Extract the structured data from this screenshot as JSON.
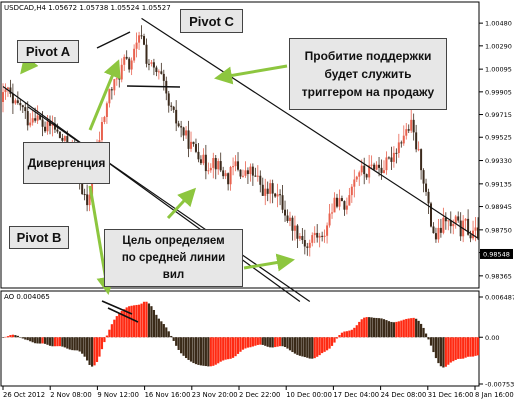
{
  "main_chart": {
    "header": "USDCAD,H4  1.05672 1.05738 1.05524 1.05527",
    "y_ticks": [
      "1.00480",
      "1.00290",
      "1.00095",
      "0.99905",
      "0.99715",
      "0.99525",
      "0.99330",
      "0.99135",
      "0.98945",
      "0.98750",
      "0.98560",
      "0.98365"
    ],
    "current_price": "0.98548"
  },
  "ao_panel": {
    "header": "AO 0.004065",
    "y_ticks": [
      "0.006487",
      "0.00",
      "-0.007533"
    ]
  },
  "x_ticks": [
    "26 Oct 2012",
    "2 Nov 08:00",
    "9 Nov 12:00",
    "16 Nov 16:00",
    "23 Nov 20:00",
    "2 Dec 22:00",
    "10 Dec 00:00",
    "17 Dec 04:00",
    "24 Dec 08:00",
    "31 Dec 16:00",
    "8 Jan 16:00"
  ],
  "annotations": {
    "pivot_a": "Pivot A",
    "pivot_b": "Pivot B",
    "pivot_c": "Pivot C",
    "divergence": "Дивергенция",
    "breakout_line1": "Пробитие поддержки",
    "breakout_line2": "будет служить",
    "breakout_line3": "триггером на продажу",
    "target_line1": "Цель определяем",
    "target_line2": "по средней линии",
    "target_line3": "вил"
  },
  "colors": {
    "bull_candle": "#e8624f",
    "bear_candle": "#3b2a1c",
    "ao_up": "#ff2a12",
    "ao_down": "#3a2a18",
    "arrow": "#8dc63f",
    "channel": "#111111"
  },
  "chart_data": {
    "type": "candlestick",
    "symbol": "USDCAD",
    "timeframe": "H4",
    "header_values": {
      "open": 1.05672,
      "high": 1.05738,
      "low": 1.05524,
      "close": 1.05527
    },
    "x_ticks": [
      "26 Oct 2012",
      "2 Nov 08:00",
      "9 Nov 12:00",
      "16 Nov 16:00",
      "23 Nov 20:00",
      "2 Dec 22:00",
      "10 Dec 00:00",
      "17 Dec 04:00",
      "24 Dec 08:00",
      "31 Dec 16:00",
      "8 Jan 16:00"
    ],
    "price_path": [
      [
        0,
        0.9982
      ],
      [
        3,
        0.9993
      ],
      [
        5,
        0.9978
      ],
      [
        8,
        0.998
      ],
      [
        11,
        0.9967
      ],
      [
        14,
        0.9972
      ],
      [
        18,
        0.9959
      ],
      [
        21,
        0.9963
      ],
      [
        24,
        0.9952
      ],
      [
        27,
        0.9946
      ],
      [
        30,
        0.9944
      ],
      [
        32,
        0.9918
      ],
      [
        35,
        0.9892
      ],
      [
        38,
        0.993
      ],
      [
        41,
        0.9962
      ],
      [
        44,
        0.999
      ],
      [
        47,
        1.0
      ],
      [
        50,
        1.0016
      ],
      [
        52,
        1.0012
      ],
      [
        55,
        1.0028
      ],
      [
        57,
        1.004
      ],
      [
        59,
        1.0018
      ],
      [
        62,
        1.0008
      ],
      [
        65,
        1.0002
      ],
      [
        68,
        0.9978
      ],
      [
        71,
        0.9966
      ],
      [
        74,
        0.9956
      ],
      [
        77,
        0.9945
      ],
      [
        80,
        0.994
      ],
      [
        83,
        0.9928
      ],
      [
        86,
        0.9934
      ],
      [
        89,
        0.9925
      ],
      [
        92,
        0.9918
      ],
      [
        95,
        0.993
      ],
      [
        98,
        0.992
      ],
      [
        101,
        0.9924
      ],
      [
        104,
        0.9916
      ],
      [
        107,
        0.9905
      ],
      [
        110,
        0.991
      ],
      [
        113,
        0.99
      ],
      [
        116,
        0.9885
      ],
      [
        119,
        0.9876
      ],
      [
        122,
        0.9868
      ],
      [
        124,
        0.986
      ],
      [
        127,
        0.9872
      ],
      [
        130,
        0.9866
      ],
      [
        133,
        0.9888
      ],
      [
        136,
        0.99
      ],
      [
        139,
        0.9892
      ],
      [
        142,
        0.9915
      ],
      [
        145,
        0.9925
      ],
      [
        148,
        0.9922
      ],
      [
        151,
        0.993
      ],
      [
        154,
        0.9926
      ],
      [
        157,
        0.9932
      ],
      [
        160,
        0.9944
      ],
      [
        163,
        0.9955
      ],
      [
        166,
        0.9962
      ],
      [
        168,
        0.9945
      ],
      [
        170,
        0.993
      ],
      [
        172,
        0.9905
      ],
      [
        174,
        0.988
      ],
      [
        176,
        0.9868
      ],
      [
        178,
        0.9875
      ],
      [
        180,
        0.9885
      ],
      [
        182,
        0.9876
      ],
      [
        184,
        0.9882
      ],
      [
        186,
        0.9874
      ],
      [
        188,
        0.988
      ],
      [
        190,
        0.987
      ],
      [
        192,
        0.9872
      ]
    ],
    "channel_lines": [
      {
        "name": "upper",
        "from": [
          56,
          1.0052
        ],
        "to": [
          192,
          0.9868
        ]
      },
      {
        "name": "median",
        "from": [
          10,
          0.9978
        ],
        "to": [
          124,
          0.9815
        ]
      },
      {
        "name": "lower",
        "from": [
          0,
          0.9995
        ],
        "to": [
          120,
          0.9815
        ]
      }
    ],
    "ylim": [
      0.9828,
      1.0059
    ],
    "y_ticks": [
      1.0048,
      1.0029,
      1.00095,
      0.99905,
      0.99715,
      0.99525,
      0.9933,
      0.99135,
      0.98945,
      0.9875,
      0.9856,
      0.98365
    ],
    "current_price": 0.98548,
    "indicator": {
      "name": "AO",
      "value": 0.004065,
      "ylim": [
        -0.007533,
        0.006487
      ],
      "y_ticks": [
        0.006487,
        0.0,
        -0.007533
      ]
    }
  }
}
